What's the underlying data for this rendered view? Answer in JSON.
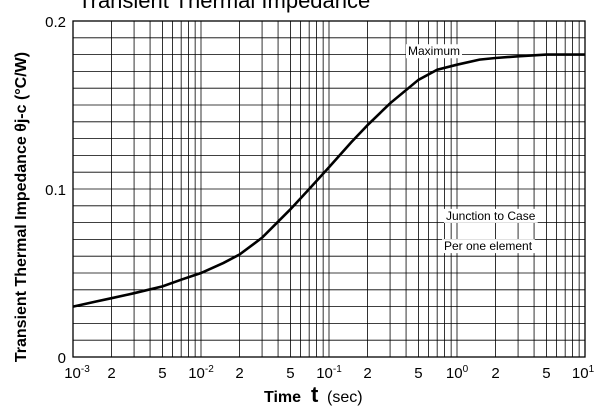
{
  "chart_data": {
    "type": "line",
    "title": "Transient Thermal Impedance",
    "ylabel": "Transient Thermal Impedance θj-c (°C/W)",
    "xlabel": {
      "prefix": "Time",
      "symbol": "t",
      "unit": "(sec)"
    },
    "x_scale": "log",
    "xlim": [
      0.001,
      10
    ],
    "ylim": [
      0,
      0.2
    ],
    "grid": true,
    "y_ticks": [
      {
        "value": 0,
        "label": "0"
      },
      {
        "value": 0.1,
        "label": "0.1"
      },
      {
        "value": 0.2,
        "label": "0.2"
      }
    ],
    "x_ticks": [
      {
        "value": 0.001,
        "base": "10",
        "exp": "-3"
      },
      {
        "value": 0.002,
        "base": "2",
        "exp": ""
      },
      {
        "value": 0.005,
        "base": "5",
        "exp": ""
      },
      {
        "value": 0.01,
        "base": "10",
        "exp": "-2"
      },
      {
        "value": 0.02,
        "base": "2",
        "exp": ""
      },
      {
        "value": 0.05,
        "base": "5",
        "exp": ""
      },
      {
        "value": 0.1,
        "base": "10",
        "exp": "-1"
      },
      {
        "value": 0.2,
        "base": "2",
        "exp": ""
      },
      {
        "value": 0.5,
        "base": "5",
        "exp": ""
      },
      {
        "value": 1,
        "base": "10",
        "exp": "0"
      },
      {
        "value": 2,
        "base": "2",
        "exp": ""
      },
      {
        "value": 5,
        "base": "5",
        "exp": ""
      },
      {
        "value": 10,
        "base": "10",
        "exp": "1"
      }
    ],
    "series": [
      {
        "x": [
          0.001,
          0.0015,
          0.002,
          0.003,
          0.005,
          0.007,
          0.01,
          0.015,
          0.02,
          0.03,
          0.05,
          0.07,
          0.1,
          0.15,
          0.2,
          0.3,
          0.5,
          0.7,
          1,
          1.5,
          2,
          3,
          5,
          7,
          10
        ],
        "y": [
          0.03,
          0.033,
          0.035,
          0.038,
          0.042,
          0.046,
          0.05,
          0.056,
          0.061,
          0.071,
          0.088,
          0.1,
          0.113,
          0.128,
          0.138,
          0.151,
          0.165,
          0.171,
          0.174,
          0.177,
          0.178,
          0.179,
          0.18,
          0.18,
          0.18
        ]
      }
    ],
    "annotations": [
      {
        "id": "maximum",
        "text": "Maximum"
      },
      {
        "id": "junction",
        "text": "Junction to Case"
      },
      {
        "id": "element",
        "text": "Per one element"
      }
    ]
  }
}
